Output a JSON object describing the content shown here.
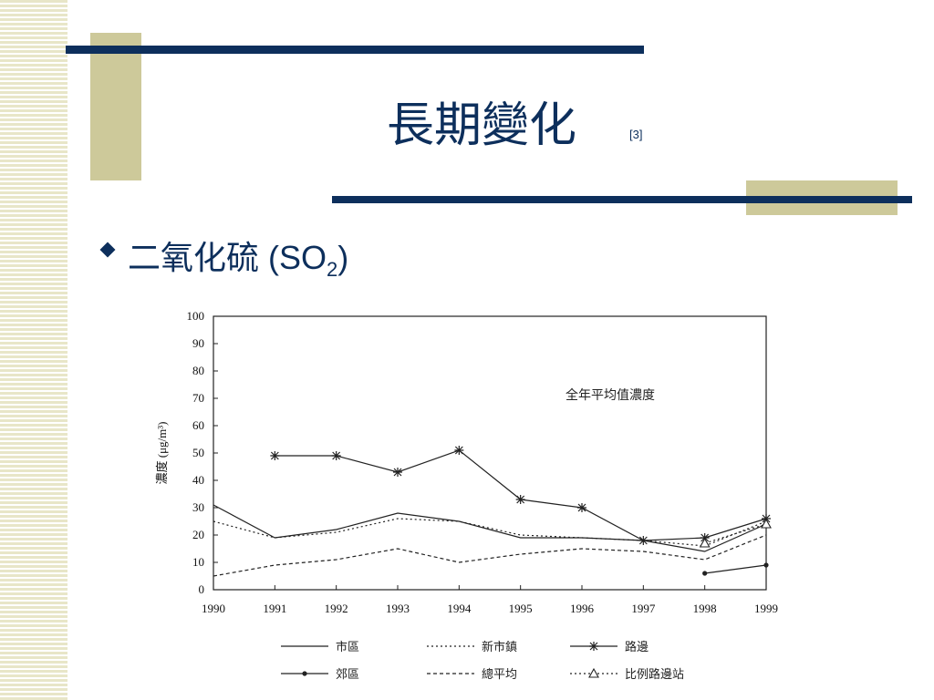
{
  "slide": {
    "title": "長期變化",
    "title_ref": "[3]",
    "bullet": {
      "text_main": "二氧化硫 (SO",
      "text_sub": "2",
      "text_end": ")"
    }
  },
  "colors": {
    "navy": "#0d2f5c",
    "tan": "#cdc99a",
    "stripe": "#e8e6c8"
  },
  "chart_data": {
    "type": "line",
    "title": "",
    "annotation": "全年平均值濃度",
    "ylabel": "濃度 (μg/m³)",
    "xlabel": "",
    "x": [
      "1990",
      "1991",
      "1992",
      "1993",
      "1994",
      "1995",
      "1996",
      "1997",
      "1998",
      "1999"
    ],
    "ylim": [
      0,
      100
    ],
    "yticks": [
      "0",
      "10",
      "20",
      "30",
      "40",
      "50",
      "60",
      "70",
      "80",
      "90",
      "100"
    ],
    "grid": false,
    "series": [
      {
        "name": "市區",
        "style": "solid",
        "marker": "none",
        "values": [
          31,
          19,
          22,
          28,
          25,
          19,
          19,
          18,
          14,
          24
        ]
      },
      {
        "name": "新市鎮",
        "style": "dotted",
        "marker": "none",
        "values": [
          25,
          19,
          21,
          26,
          25,
          20,
          19,
          18,
          16,
          25
        ]
      },
      {
        "name": "路邊",
        "style": "solid",
        "marker": "star",
        "values": [
          null,
          49,
          49,
          43,
          51,
          33,
          30,
          18,
          19,
          26
        ]
      },
      {
        "name": "郊區",
        "style": "solid",
        "marker": "dot",
        "values": [
          null,
          null,
          null,
          null,
          null,
          null,
          null,
          null,
          6,
          9
        ]
      },
      {
        "name": "總平均",
        "style": "dashed",
        "marker": "none",
        "values": [
          5,
          9,
          11,
          15,
          10,
          13,
          15,
          14,
          11,
          20
        ]
      },
      {
        "name": "比例路邊站",
        "style": "dotted",
        "marker": "triangle",
        "values": [
          null,
          null,
          null,
          null,
          null,
          null,
          null,
          null,
          17,
          24
        ]
      }
    ]
  }
}
